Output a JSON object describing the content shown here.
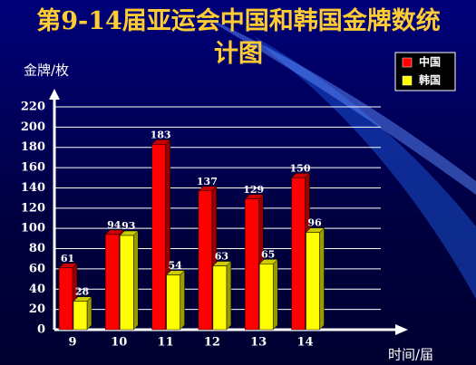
{
  "chart_data": {
    "type": "bar3d",
    "title": "第9-14届亚运会中国和韩国金牌数统计图",
    "y_axis_label": "金牌/枚",
    "x_axis_label": "时间/届",
    "categories": [
      "9",
      "10",
      "11",
      "12",
      "13",
      "14"
    ],
    "series": [
      {
        "name": "中国",
        "color": "#ff0000",
        "values": [
          61,
          94,
          183,
          137,
          129,
          150
        ]
      },
      {
        "name": "韩国",
        "color": "#ffff00",
        "values": [
          28,
          93,
          54,
          63,
          65,
          96
        ]
      }
    ],
    "ylim": [
      0,
      220
    ],
    "yticks": [
      0,
      20,
      40,
      60,
      80,
      100,
      120,
      140,
      160,
      180,
      200,
      220
    ],
    "grid": true,
    "legend": "top-right"
  }
}
